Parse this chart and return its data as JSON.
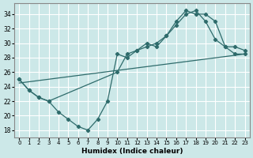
{
  "xlabel": "Humidex (Indice chaleur)",
  "ylabel": "",
  "xlim": [
    -0.5,
    23.5
  ],
  "ylim": [
    17,
    35.5
  ],
  "yticks": [
    18,
    20,
    22,
    24,
    26,
    28,
    30,
    32,
    34
  ],
  "xticks": [
    0,
    1,
    2,
    3,
    4,
    5,
    6,
    7,
    8,
    9,
    10,
    11,
    12,
    13,
    14,
    15,
    16,
    17,
    18,
    19,
    20,
    21,
    22,
    23
  ],
  "bg_color": "#cce8e8",
  "grid_color": "#ffffff",
  "line_color": "#2e6b6b",
  "series1_x": [
    0,
    1,
    2,
    3,
    4,
    5,
    6,
    7,
    8,
    9,
    10,
    11,
    12,
    13,
    14,
    15,
    16,
    17,
    18,
    19,
    20,
    21,
    22,
    23
  ],
  "series1_y": [
    25.0,
    23.5,
    22.5,
    22.0,
    20.5,
    19.5,
    18.5,
    18.0,
    19.5,
    22.0,
    28.5,
    28.0,
    29.0,
    30.0,
    29.5,
    31.0,
    32.5,
    34.0,
    34.5,
    33.0,
    30.5,
    29.5,
    29.5,
    29.0
  ],
  "series2_x": [
    0,
    1,
    2,
    3,
    10,
    11,
    12,
    13,
    14,
    15,
    16,
    17,
    18,
    19,
    20,
    21,
    22,
    23
  ],
  "series2_y": [
    25.0,
    23.5,
    22.5,
    22.0,
    26.0,
    28.5,
    29.0,
    29.5,
    30.0,
    31.0,
    33.0,
    34.5,
    34.0,
    34.0,
    33.0,
    29.5,
    28.5,
    28.5
  ],
  "series3_x": [
    0,
    23
  ],
  "series3_y": [
    24.5,
    28.5
  ]
}
